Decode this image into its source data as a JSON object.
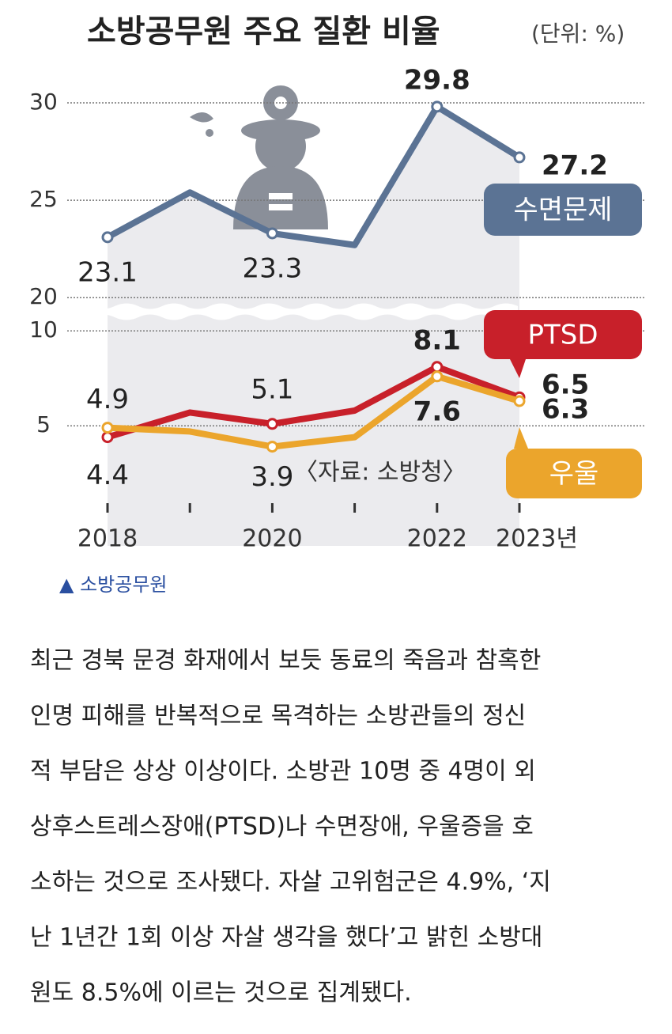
{
  "chart_data": {
    "type": "line",
    "title": "소방공무원 주요 질환 비율",
    "subtitle": "(단위: %)",
    "source": "〈자료: 소방청〉",
    "categories": [
      "2018",
      null,
      "2020",
      null,
      "2022",
      "2023년"
    ],
    "series": [
      {
        "name": "수면문제",
        "color": "#5b7394",
        "axis": "y2",
        "values": [
          23.1,
          25.4,
          23.3,
          22.7,
          29.8,
          27.2
        ],
        "value_labels": [
          "23.1",
          null,
          "23.3",
          null,
          "29.8",
          "27.2"
        ]
      },
      {
        "name": "PTSD",
        "color": "#c8202a",
        "values": [
          4.4,
          5.7,
          5.1,
          5.8,
          8.1,
          6.5
        ],
        "value_labels": [
          "4.4",
          null,
          "5.1",
          null,
          "8.1",
          "6.5"
        ]
      },
      {
        "name": "우울",
        "color": "#eba52c",
        "values": [
          4.9,
          4.7,
          3.9,
          4.4,
          7.6,
          6.3
        ],
        "value_labels": [
          "4.9",
          null,
          "3.9",
          null,
          "7.6",
          "6.3"
        ]
      }
    ],
    "ylim": [
      1.8,
      10.8
    ],
    "yticks": [
      5,
      10
    ],
    "y2lim": [
      19.4,
      31.5
    ],
    "y2ticks": [
      20,
      25,
      30
    ],
    "grid": true
  },
  "photo_caption": "▲ 소방공무원",
  "article": {
    "lines": [
      "최근 경북 문경 화재에서 보듯 동료의 죽음과 참혹한",
      "인명 피해를 반복적으로 목격하는 소방관들의 정신",
      "적 부담은 상상 이상이다. 소방관 10명 중 4명이 외",
      "상후스트레스장애(PTSD)나 수면장애, 우울증을 호",
      "소하는 것으로 조사됐다. 자살 고위험군은 4.9%, ‘지",
      "난 1년간 1회 이상 자살 생각을 했다’고 밝힌 소방대",
      "원도 8.5%에 이르는 것으로 집계됐다."
    ]
  }
}
